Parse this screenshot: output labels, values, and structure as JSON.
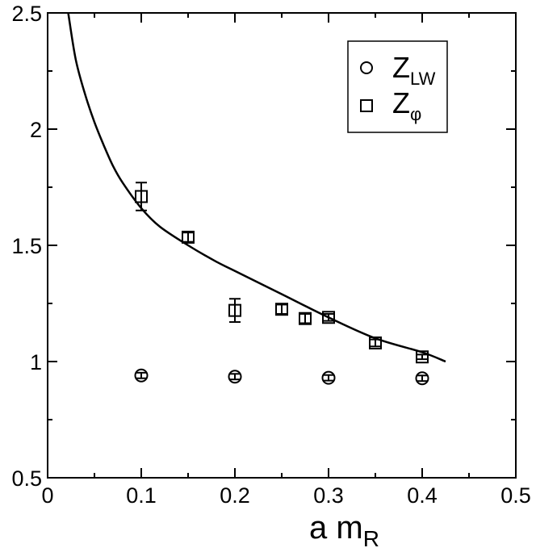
{
  "chart_data": {
    "type": "scatter",
    "title": "",
    "xlabel": {
      "main": "a m",
      "sub": "R"
    },
    "ylabel": "",
    "xlim": [
      0,
      0.5
    ],
    "ylim": [
      0.5,
      2.5
    ],
    "x_ticks": [
      "0",
      "0.1",
      "0.2",
      "0.3",
      "0.4",
      "0.5"
    ],
    "y_ticks": [
      "0.5",
      "1",
      "1.5",
      "2",
      "2.5"
    ],
    "x_tick_values": [
      0,
      0.1,
      0.2,
      0.3,
      0.4,
      0.5
    ],
    "y_tick_values": [
      0.5,
      1,
      1.5,
      2,
      2.5
    ],
    "grid": false,
    "legend_position": "top-right",
    "series": [
      {
        "name": "Z_LW",
        "label_main": "Z",
        "label_sub": "LW",
        "marker": "circle",
        "points": [
          {
            "x": 0.1,
            "y": 0.94,
            "err": 0.012
          },
          {
            "x": 0.2,
            "y": 0.935,
            "err": 0.012
          },
          {
            "x": 0.3,
            "y": 0.93,
            "err": 0.012
          },
          {
            "x": 0.4,
            "y": 0.928,
            "err": 0.012
          }
        ]
      },
      {
        "name": "Z_φ",
        "label_main": "Z",
        "label_sub": "φ",
        "marker": "square",
        "points": [
          {
            "x": 0.1,
            "y": 1.71,
            "err": 0.06
          },
          {
            "x": 0.15,
            "y": 1.535,
            "err": 0.02
          },
          {
            "x": 0.2,
            "y": 1.22,
            "err": 0.05
          },
          {
            "x": 0.25,
            "y": 1.225,
            "err": 0.02
          },
          {
            "x": 0.275,
            "y": 1.185,
            "err": 0.02
          },
          {
            "x": 0.3,
            "y": 1.19,
            "err": 0.015
          },
          {
            "x": 0.35,
            "y": 1.08,
            "err": 0.015
          },
          {
            "x": 0.4,
            "y": 1.02,
            "err": 0.01
          }
        ]
      }
    ],
    "fit_curve": {
      "marker": "line",
      "x": [
        0.022,
        0.03,
        0.04,
        0.05,
        0.06,
        0.07,
        0.08,
        0.1,
        0.12,
        0.15,
        0.18,
        0.2,
        0.25,
        0.3,
        0.35,
        0.4,
        0.425
      ],
      "y": [
        2.5,
        2.3,
        2.15,
        2.03,
        1.93,
        1.84,
        1.77,
        1.66,
        1.58,
        1.5,
        1.43,
        1.39,
        1.29,
        1.19,
        1.1,
        1.04,
        1.0
      ]
    }
  }
}
